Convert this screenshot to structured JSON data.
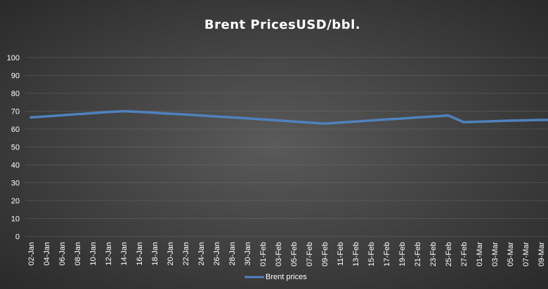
{
  "colors": {
    "series": "#4f81bd",
    "text": "#ffffff",
    "grid": "#8a8a8a",
    "bg_center": "#5a5a5a",
    "bg_edge": "#2a2a2a"
  },
  "chart_data": {
    "type": "line",
    "title": "Brent PricesUSD/bbl.",
    "xlabel": "",
    "ylabel": "",
    "ylim": [
      0,
      100
    ],
    "yticks": [
      0,
      10,
      20,
      30,
      40,
      50,
      60,
      70,
      80,
      90,
      100
    ],
    "grid": true,
    "legend_position": "bottom",
    "x": [
      "02-Jan",
      "04-Jan",
      "06-Jan",
      "08-Jan",
      "10-Jan",
      "12-Jan",
      "14-Jan",
      "16-Jan",
      "18-Jan",
      "20-Jan",
      "22-Jan",
      "24-Jan",
      "26-Jan",
      "28-Jan",
      "30-Jan",
      "01-Feb",
      "03-Feb",
      "05-Feb",
      "07-Feb",
      "09-Feb",
      "11-Feb",
      "13-Feb",
      "15-Feb",
      "17-Feb",
      "19-Feb",
      "21-Feb",
      "23-Feb",
      "25-Feb",
      "27-Feb",
      "01-Mar",
      "03-Mar",
      "05-Mar",
      "07-Mar",
      "09-Mar"
    ],
    "series": [
      {
        "name": "Brent prices",
        "values": [
          66.5,
          67.1,
          67.7,
          68.3,
          68.9,
          69.5,
          70.0,
          69.6,
          69.1,
          68.6,
          68.1,
          67.6,
          67.0,
          66.5,
          66.0,
          65.4,
          64.8,
          64.2,
          63.6,
          63.0,
          63.6,
          64.2,
          64.8,
          65.4,
          65.9,
          66.5,
          67.0,
          67.6,
          63.9,
          64.1,
          64.4,
          64.7,
          64.9,
          65.1
        ]
      }
    ]
  }
}
